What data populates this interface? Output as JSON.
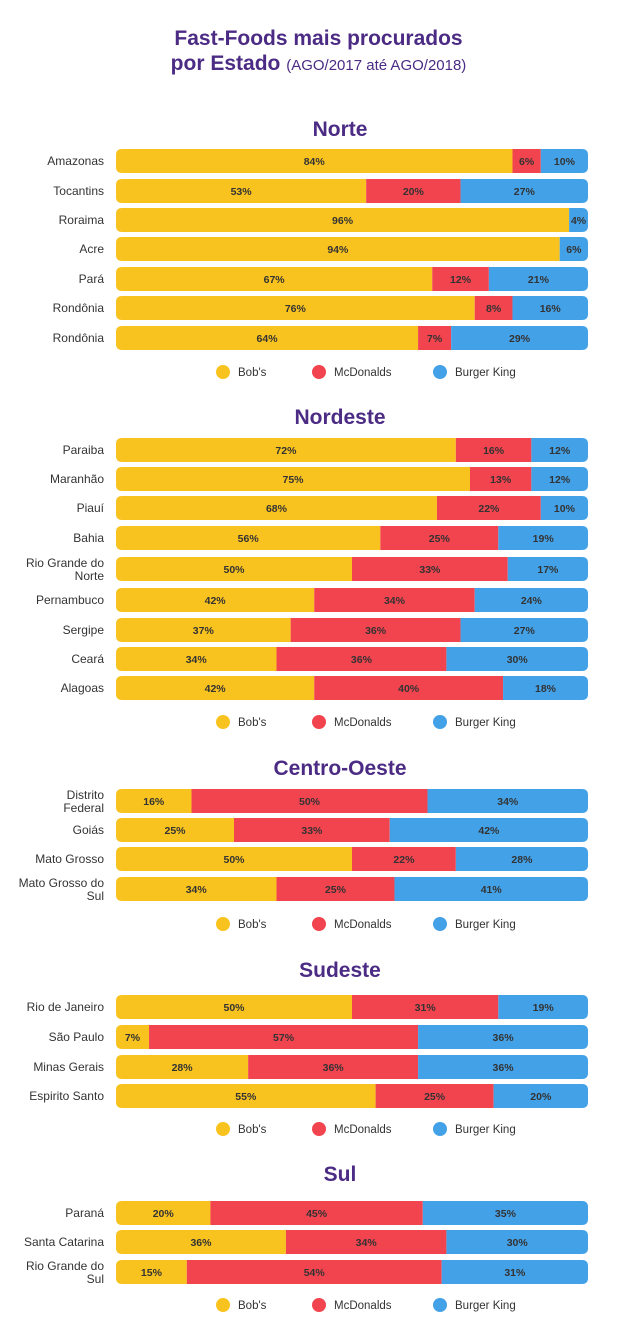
{
  "header": {
    "title_line1": "Fast-Foods mais procurados",
    "title_line2": "por Estado",
    "title_range": "(AGO/2017 até AGO/2018)"
  },
  "colors": {
    "Bob's": "#f9c31f",
    "McDonalds": "#f2444f",
    "Burger King": "#43a1e8"
  },
  "chart_data": [
    {
      "type": "bar",
      "stacked": true,
      "orientation": "horizontal",
      "title": "Norte",
      "categories": [
        "Amazonas",
        "Tocantins",
        "Roraima",
        "Acre",
        "Pará",
        "Rondônia",
        "Rondônia"
      ],
      "series": [
        {
          "name": "Bob's",
          "values": [
            84,
            53,
            96,
            94,
            67,
            76,
            64
          ]
        },
        {
          "name": "McDonalds",
          "values": [
            6,
            20,
            0,
            0,
            12,
            8,
            7
          ]
        },
        {
          "name": "Burger King",
          "values": [
            10,
            27,
            4,
            6,
            21,
            16,
            29
          ]
        }
      ],
      "legend": "bottom"
    },
    {
      "type": "bar",
      "stacked": true,
      "orientation": "horizontal",
      "title": "Nordeste",
      "categories": [
        "Paraiba",
        "Maranhão",
        "Piauí",
        "Bahia",
        "Rio Grande do Norte",
        "Pernambuco",
        "Sergipe",
        "Ceará",
        "Alagoas"
      ],
      "series": [
        {
          "name": "Bob's",
          "values": [
            72,
            75,
            68,
            56,
            50,
            42,
            37,
            34,
            42
          ]
        },
        {
          "name": "McDonalds",
          "values": [
            16,
            13,
            22,
            25,
            33,
            34,
            36,
            36,
            40
          ]
        },
        {
          "name": "Burger King",
          "values": [
            12,
            12,
            10,
            19,
            17,
            24,
            27,
            30,
            18
          ]
        }
      ],
      "legend": "bottom"
    },
    {
      "type": "bar",
      "stacked": true,
      "orientation": "horizontal",
      "title": "Centro-Oeste",
      "categories": [
        "Distrito Federal",
        "Goiás",
        "Mato Grosso",
        "Mato Grosso do Sul"
      ],
      "series": [
        {
          "name": "Bob's",
          "values": [
            16,
            25,
            50,
            34
          ]
        },
        {
          "name": "McDonalds",
          "values": [
            50,
            33,
            22,
            25
          ]
        },
        {
          "name": "Burger King",
          "values": [
            34,
            42,
            28,
            41
          ]
        }
      ],
      "legend": "bottom"
    },
    {
      "type": "bar",
      "stacked": true,
      "orientation": "horizontal",
      "title": "Sudeste",
      "categories": [
        "Rio de Janeiro",
        "São Paulo",
        "Minas Gerais",
        "Espirito Santo"
      ],
      "series": [
        {
          "name": "Bob's",
          "values": [
            50,
            7,
            28,
            55
          ]
        },
        {
          "name": "McDonalds",
          "values": [
            31,
            57,
            36,
            25
          ]
        },
        {
          "name": "Burger King",
          "values": [
            19,
            36,
            36,
            20
          ]
        }
      ],
      "legend": "bottom"
    },
    {
      "type": "bar",
      "stacked": true,
      "orientation": "horizontal",
      "title": "Sul",
      "categories": [
        "Paraná",
        "Santa Catarina",
        "Rio Grande do Sul"
      ],
      "series": [
        {
          "name": "Bob's",
          "values": [
            20,
            36,
            15
          ]
        },
        {
          "name": "McDonalds",
          "values": [
            45,
            34,
            54
          ]
        },
        {
          "name": "Burger King",
          "values": [
            35,
            30,
            31
          ]
        }
      ],
      "legend": "bottom"
    }
  ]
}
